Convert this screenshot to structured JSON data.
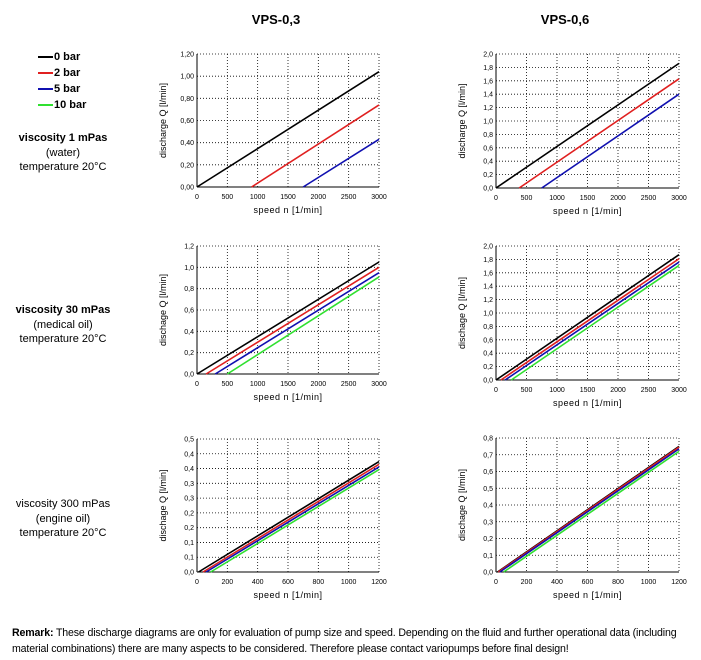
{
  "columns": [
    "VPS-0,3",
    "VPS-0,6"
  ],
  "legend": [
    {
      "label": "0 bar",
      "color": "#000000"
    },
    {
      "label": "2 bar",
      "color": "#e02020"
    },
    {
      "label": "5 bar",
      "color": "#1010b0"
    },
    {
      "label": "10 bar",
      "color": "#30e030"
    }
  ],
  "rows": [
    {
      "viscosity": "viscosity 1 mPas",
      "fluid": "(water)",
      "temperature": "temperature 20°C",
      "bold": true
    },
    {
      "viscosity": "viscosity 30 mPas",
      "fluid": "(medical oil)",
      "temperature": "temperature 20°C",
      "bold": true
    },
    {
      "viscosity": "viscosity 300 mPas",
      "fluid": "(engine oil)",
      "temperature": "temperature 20°C",
      "bold": false
    }
  ],
  "remark": {
    "label": "Remark:",
    "text": "These discharge diagrams are only for evaluation of pump size and speed. Depending on the fluid and further operational data (including material combinations) there are many aspects to be considered. Therefore please contact variopumps before final design!"
  },
  "chart_data": [
    {
      "type": "line",
      "pump": "VPS-0,3",
      "row": 0,
      "xlabel": "speed n [1/min]",
      "ylabel": "discharge Q [l/min]",
      "xlim": [
        0,
        3000
      ],
      "ylim": [
        0,
        1.2
      ],
      "grid": true,
      "xticks": [
        "0",
        "500",
        "1000",
        "1500",
        "2000",
        "2500",
        "3000"
      ],
      "yticks": [
        "0,00",
        "0,20",
        "0,40",
        "0,60",
        "0,80",
        "1,00",
        "1,20"
      ],
      "series": [
        {
          "name": "0 bar",
          "points": [
            [
              0,
              0
            ],
            [
              3000,
              1.04
            ]
          ]
        },
        {
          "name": "2 bar",
          "points": [
            [
              900,
              0
            ],
            [
              3000,
              0.74
            ]
          ]
        },
        {
          "name": "5 bar",
          "points": [
            [
              1750,
              0
            ],
            [
              3000,
              0.43
            ]
          ]
        }
      ]
    },
    {
      "type": "line",
      "pump": "VPS-0,6",
      "row": 0,
      "xlabel": "speed n [1/min]",
      "ylabel": "discharge Q [l/min]",
      "xlim": [
        0,
        3000
      ],
      "ylim": [
        0,
        2.0
      ],
      "grid": true,
      "xticks": [
        "0",
        "500",
        "1000",
        "1500",
        "2000",
        "2500",
        "3000"
      ],
      "yticks": [
        "0,0",
        "0,2",
        "0,4",
        "0,6",
        "0,8",
        "1,0",
        "1,2",
        "1,4",
        "1,6",
        "1,8",
        "2,0"
      ],
      "series": [
        {
          "name": "0 bar",
          "points": [
            [
              0,
              0
            ],
            [
              3000,
              1.86
            ]
          ]
        },
        {
          "name": "2 bar",
          "points": [
            [
              380,
              0
            ],
            [
              3000,
              1.63
            ]
          ]
        },
        {
          "name": "5 bar",
          "points": [
            [
              750,
              0
            ],
            [
              3000,
              1.4
            ]
          ]
        }
      ]
    },
    {
      "type": "line",
      "pump": "VPS-0,3",
      "row": 1,
      "xlabel": "speed n [1/min]",
      "ylabel": "dischage Q [l/min]",
      "xlim": [
        0,
        3000
      ],
      "ylim": [
        0,
        1.2
      ],
      "grid": true,
      "xticks": [
        "0",
        "500",
        "1000",
        "1500",
        "2000",
        "2500",
        "3000"
      ],
      "yticks": [
        "0,0",
        "0,2",
        "0,4",
        "0,6",
        "0,8",
        "1,0",
        "1,2"
      ],
      "series": [
        {
          "name": "0 bar",
          "points": [
            [
              0,
              0
            ],
            [
              3000,
              1.05
            ]
          ]
        },
        {
          "name": "2 bar",
          "points": [
            [
              150,
              0
            ],
            [
              3000,
              1.0
            ]
          ]
        },
        {
          "name": "5 bar",
          "points": [
            [
              300,
              0
            ],
            [
              3000,
              0.95
            ]
          ]
        },
        {
          "name": "10 bar",
          "points": [
            [
              500,
              0
            ],
            [
              3000,
              0.91
            ]
          ]
        }
      ]
    },
    {
      "type": "line",
      "pump": "VPS-0,6",
      "row": 1,
      "xlabel": "speed n [1/min]",
      "ylabel": "dischage Q [l/min]",
      "xlim": [
        0,
        3000
      ],
      "ylim": [
        0,
        2.0
      ],
      "grid": true,
      "xticks": [
        "0",
        "500",
        "1000",
        "1500",
        "2000",
        "2500",
        "3000"
      ],
      "yticks": [
        "0,0",
        "0,2",
        "0,4",
        "0,6",
        "0,8",
        "1,0",
        "1,2",
        "1,4",
        "1,6",
        "1,8",
        "2,0"
      ],
      "series": [
        {
          "name": "0 bar",
          "points": [
            [
              0,
              0
            ],
            [
              3000,
              1.87
            ]
          ]
        },
        {
          "name": "2 bar",
          "points": [
            [
              80,
              0
            ],
            [
              3000,
              1.81
            ]
          ]
        },
        {
          "name": "5 bar",
          "points": [
            [
              150,
              0
            ],
            [
              3000,
              1.76
            ]
          ]
        },
        {
          "name": "10 bar",
          "points": [
            [
              250,
              0
            ],
            [
              3000,
              1.71
            ]
          ]
        }
      ]
    },
    {
      "type": "line",
      "pump": "VPS-0,3",
      "row": 2,
      "xlabel": "speed n [1/min]",
      "ylabel": "dischage Q [l/min]",
      "xlim": [
        0,
        1200
      ],
      "ylim": [
        0,
        0.5
      ],
      "grid": true,
      "xticks": [
        "0",
        "200",
        "400",
        "600",
        "800",
        "1000",
        "1200"
      ],
      "yticks": [
        "0,0",
        "0,1",
        "0,1",
        "0,2",
        "0,2",
        "0,3",
        "0,3",
        "0,4",
        "0,4",
        "0,5"
      ],
      "series": [
        {
          "name": "0 bar",
          "points": [
            [
              10,
              0
            ],
            [
              1200,
              0.415
            ]
          ]
        },
        {
          "name": "2 bar",
          "points": [
            [
              40,
              0
            ],
            [
              1200,
              0.405
            ]
          ]
        },
        {
          "name": "5 bar",
          "points": [
            [
              60,
              0
            ],
            [
              1200,
              0.395
            ]
          ]
        },
        {
          "name": "10 bar",
          "points": [
            [
              90,
              0
            ],
            [
              1200,
              0.385
            ]
          ]
        }
      ]
    },
    {
      "type": "line",
      "pump": "VPS-0,6",
      "row": 2,
      "xlabel": "speed n [1/min]",
      "ylabel": "dischage Q [l/min]",
      "xlim": [
        0,
        1200
      ],
      "ylim": [
        0,
        0.8
      ],
      "grid": true,
      "xticks": [
        "0",
        "200",
        "400",
        "600",
        "800",
        "1000",
        "1200"
      ],
      "yticks": [
        "0,0",
        "0,1",
        "0,2",
        "0,3",
        "0,4",
        "0,5",
        "0,6",
        "0,7",
        "0,8"
      ],
      "series": [
        {
          "name": "0 bar",
          "points": [
            [
              10,
              0
            ],
            [
              1200,
              0.75
            ]
          ]
        },
        {
          "name": "2 bar",
          "points": [
            [
              15,
              0
            ],
            [
              1200,
              0.745
            ]
          ]
        },
        {
          "name": "5 bar",
          "points": [
            [
              25,
              0
            ],
            [
              1200,
              0.735
            ]
          ]
        },
        {
          "name": "10 bar",
          "points": [
            [
              50,
              0
            ],
            [
              1200,
              0.72
            ]
          ]
        }
      ]
    }
  ]
}
